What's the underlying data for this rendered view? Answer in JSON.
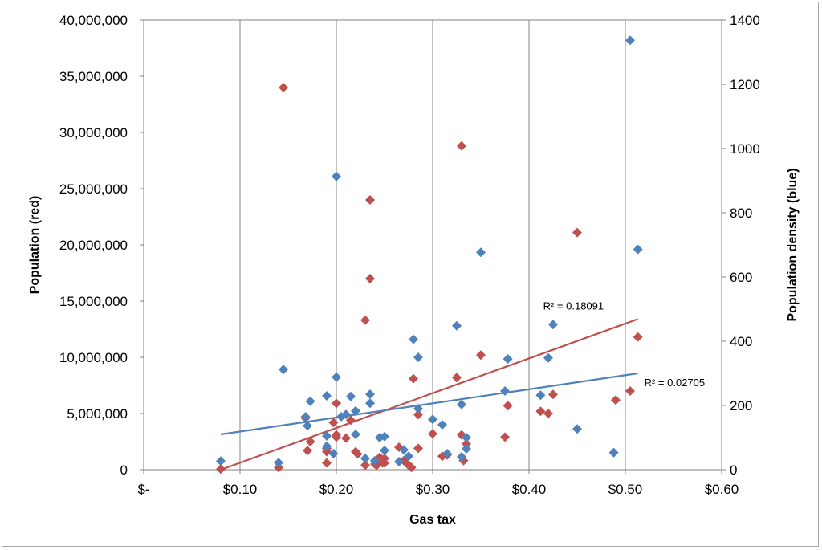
{
  "chart_data": {
    "type": "scatter",
    "xlabel": "Gas tax",
    "ylabel_left": "Population (red)",
    "ylabel_right": "Population density (blue)",
    "xlim": [
      0,
      0.6
    ],
    "x_ticks": [
      "$-",
      "$0.10",
      "$0.20",
      "$0.30",
      "$0.40",
      "$0.50",
      "$0.60"
    ],
    "x_tick_values": [
      0,
      0.1,
      0.2,
      0.3,
      0.4,
      0.5,
      0.6
    ],
    "ylim_left": [
      0,
      40000000
    ],
    "y_ticks_left": [
      "0",
      "5,000,000",
      "10,000,000",
      "15,000,000",
      "20,000,000",
      "25,000,000",
      "30,000,000",
      "35,000,000",
      "40,000,000"
    ],
    "y_tick_values_left": [
      0,
      5000000,
      10000000,
      15000000,
      20000000,
      25000000,
      30000000,
      35000000,
      40000000
    ],
    "ylim_right": [
      0,
      1400
    ],
    "y_ticks_right": [
      "0",
      "200",
      "400",
      "600",
      "800",
      "1000",
      "1200",
      "1400"
    ],
    "y_tick_values_right": [
      0,
      200,
      400,
      600,
      800,
      1000,
      1200,
      1400
    ],
    "grid": "vertical",
    "colors": {
      "red": "#c0504d",
      "blue": "#4f81bd"
    },
    "series": [
      {
        "axis": "left",
        "color": "#c0504d",
        "points": [
          [
            0.08,
            50000
          ],
          [
            0.14,
            200000
          ],
          [
            0.145,
            34000000
          ],
          [
            0.168,
            4600000
          ],
          [
            0.17,
            1700000
          ],
          [
            0.173,
            2500000
          ],
          [
            0.19,
            1900000
          ],
          [
            0.19,
            600000
          ],
          [
            0.19,
            1600000
          ],
          [
            0.197,
            4200000
          ],
          [
            0.2,
            5900000
          ],
          [
            0.2,
            3100000
          ],
          [
            0.2,
            2900000
          ],
          [
            0.21,
            2800000
          ],
          [
            0.215,
            4400000
          ],
          [
            0.22,
            1600000
          ],
          [
            0.222,
            1400000
          ],
          [
            0.23,
            13300000
          ],
          [
            0.23,
            400000
          ],
          [
            0.235,
            17000000
          ],
          [
            0.235,
            24000000
          ],
          [
            0.24,
            500000
          ],
          [
            0.242,
            400000
          ],
          [
            0.245,
            1100000
          ],
          [
            0.248,
            600000
          ],
          [
            0.25,
            1000000
          ],
          [
            0.25,
            600000
          ],
          [
            0.265,
            2000000
          ],
          [
            0.27,
            800000
          ],
          [
            0.275,
            400000
          ],
          [
            0.278,
            200000
          ],
          [
            0.28,
            8100000
          ],
          [
            0.285,
            4900000
          ],
          [
            0.285,
            1900000
          ],
          [
            0.3,
            3200000
          ],
          [
            0.31,
            1200000
          ],
          [
            0.315,
            1300000
          ],
          [
            0.325,
            8200000
          ],
          [
            0.33,
            28800000
          ],
          [
            0.33,
            3100000
          ],
          [
            0.332,
            800000
          ],
          [
            0.335,
            2300000
          ],
          [
            0.35,
            10200000
          ],
          [
            0.375,
            2900000
          ],
          [
            0.378,
            5700000
          ],
          [
            0.412,
            5200000
          ],
          [
            0.42,
            5000000
          ],
          [
            0.425,
            6700000
          ],
          [
            0.45,
            21100000
          ],
          [
            0.49,
            6200000
          ],
          [
            0.505,
            7000000
          ],
          [
            0.513,
            11800000
          ]
        ],
        "trendline": {
          "x": [
            0.08,
            0.513
          ],
          "y": [
            0,
            13400000
          ]
        },
        "r2": "R² = 0.18091"
      },
      {
        "axis": "right",
        "color": "#4f81bd",
        "points": [
          [
            0.08,
            27
          ],
          [
            0.14,
            22
          ],
          [
            0.145,
            312
          ],
          [
            0.168,
            165
          ],
          [
            0.17,
            137
          ],
          [
            0.173,
            213
          ],
          [
            0.19,
            230
          ],
          [
            0.19,
            105
          ],
          [
            0.19,
            73
          ],
          [
            0.197,
            50
          ],
          [
            0.2,
            913
          ],
          [
            0.2,
            288
          ],
          [
            0.205,
            165
          ],
          [
            0.21,
            172
          ],
          [
            0.215,
            228
          ],
          [
            0.22,
            183
          ],
          [
            0.22,
            110
          ],
          [
            0.23,
            35
          ],
          [
            0.235,
            235
          ],
          [
            0.235,
            207
          ],
          [
            0.24,
            28
          ],
          [
            0.245,
            100
          ],
          [
            0.25,
            103
          ],
          [
            0.25,
            60
          ],
          [
            0.265,
            25
          ],
          [
            0.27,
            62
          ],
          [
            0.275,
            42
          ],
          [
            0.28,
            406
          ],
          [
            0.285,
            350
          ],
          [
            0.285,
            190
          ],
          [
            0.3,
            157
          ],
          [
            0.31,
            140
          ],
          [
            0.315,
            50
          ],
          [
            0.325,
            448
          ],
          [
            0.33,
            203
          ],
          [
            0.33,
            40
          ],
          [
            0.335,
            100
          ],
          [
            0.335,
            65
          ],
          [
            0.35,
            677
          ],
          [
            0.375,
            245
          ],
          [
            0.378,
            345
          ],
          [
            0.412,
            232
          ],
          [
            0.42,
            348
          ],
          [
            0.425,
            452
          ],
          [
            0.45,
            127
          ],
          [
            0.488,
            53
          ],
          [
            0.505,
            1337
          ],
          [
            0.513,
            686
          ]
        ],
        "trendline": {
          "x": [
            0.08,
            0.513
          ],
          "y": [
            110,
            300
          ]
        },
        "r2": "R² = 0.02705"
      }
    ]
  }
}
